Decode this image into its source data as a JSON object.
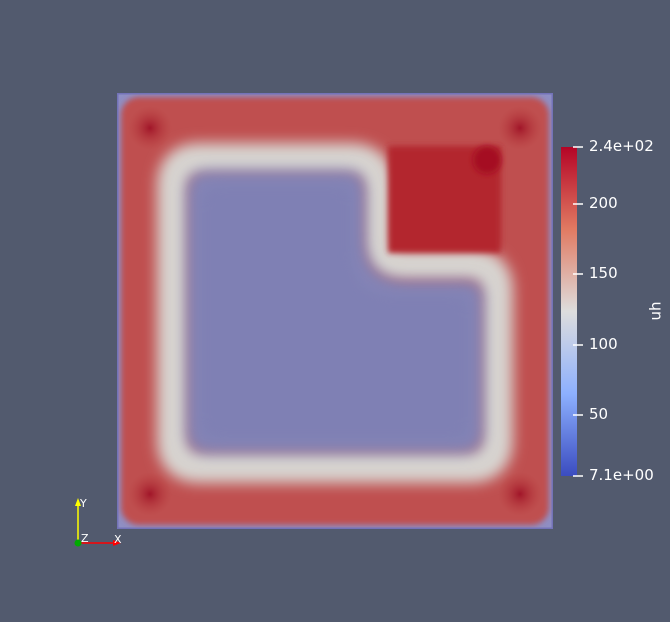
{
  "scalar_bar": {
    "title": "uh",
    "tick_labels": [
      "2.4e+02",
      "200",
      "150",
      "100",
      "50",
      "7.1e+00"
    ],
    "colors": {
      "high": "#b40426",
      "mid": "#dddddd",
      "low": "#3b4cc0"
    }
  },
  "orientation_axes": {
    "x_label": "X",
    "y_label": "Y",
    "z_label": "Z",
    "x_color": "#ff0000",
    "y_color": "#ffff00",
    "z_color": "#00aa00"
  },
  "background_color": "#525a6e"
}
